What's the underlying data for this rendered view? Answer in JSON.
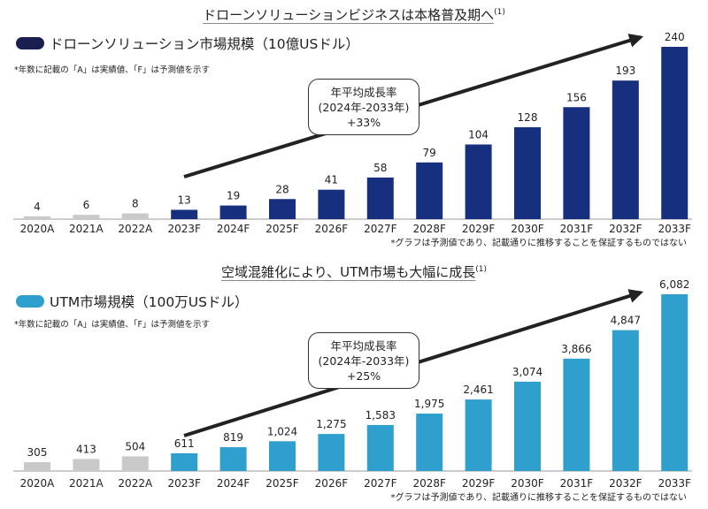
{
  "colors": {
    "actual": "#c9c9c9",
    "drone": "#16307f",
    "utm": "#2f9fcd",
    "arrow": "#222222"
  },
  "chart_data": [
    {
      "type": "bar",
      "title": "ドローンソリューションビジネスは本格普及期へ",
      "title_sup": "(1)",
      "legend": "ドローンソリューション市場規模（10億USドル）",
      "note": "*年数に記載の「A」は実績値、「F」は予測値を示す",
      "footnote": "*グラフは予測値であり、記載通りに推移することを保証するものではない",
      "callout": [
        "年平均成長率",
        "(2024年-2033年)",
        "+33%"
      ],
      "categories": [
        "2020A",
        "2021A",
        "2022A",
        "2023F",
        "2024F",
        "2025F",
        "2026F",
        "2027F",
        "2028F",
        "2029F",
        "2030F",
        "2031F",
        "2032F",
        "2033F"
      ],
      "values": [
        4,
        6,
        8,
        13,
        19,
        28,
        41,
        58,
        79,
        104,
        128,
        156,
        193,
        240
      ],
      "labels": [
        "4",
        "6",
        "8",
        "13",
        "19",
        "28",
        "41",
        "58",
        "79",
        "104",
        "128",
        "156",
        "193",
        "240"
      ],
      "ylim": [
        0,
        240
      ]
    },
    {
      "type": "bar",
      "title": "空域混雑化により、UTM市場も大幅に成長",
      "title_sup": "(1)",
      "legend": "UTM市場規模（100万USドル）",
      "note": "*年数に記載の「A」は実績値、「F」は予測値を示す",
      "footnote": "*グラフは予測値であり、記載通りに推移することを保証するものではない",
      "callout": [
        "年平均成長率",
        "(2024年-2033年)",
        "+25%"
      ],
      "categories": [
        "2020A",
        "2021A",
        "2022A",
        "2023F",
        "2024F",
        "2025F",
        "2026F",
        "2027F",
        "2028F",
        "2029F",
        "2030F",
        "2031F",
        "2032F",
        "2033F"
      ],
      "values": [
        305,
        413,
        504,
        611,
        819,
        1024,
        1275,
        1583,
        1975,
        2461,
        3074,
        3866,
        4847,
        6082
      ],
      "labels": [
        "305",
        "413",
        "504",
        "611",
        "819",
        "1,024",
        "1,275",
        "1,583",
        "1,975",
        "2,461",
        "3,074",
        "3,866",
        "4,847",
        "6,082"
      ],
      "ylim": [
        0,
        6082
      ]
    }
  ]
}
